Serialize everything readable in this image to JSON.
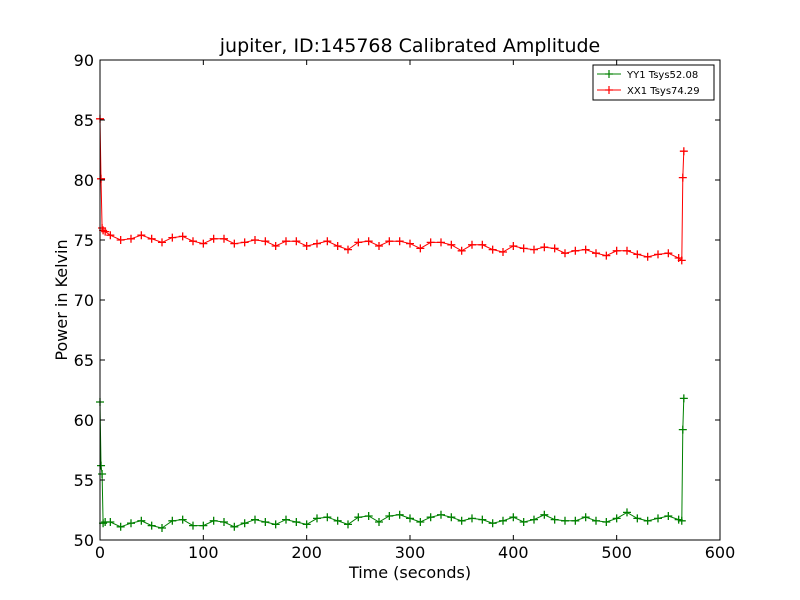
{
  "chart_data": {
    "type": "line",
    "title": "jupiter, ID:145768 Calibrated Amplitude",
    "xlabel": "Time (seconds)",
    "ylabel": "Power in Kelvin",
    "xlim": [
      0,
      600
    ],
    "ylim": [
      50,
      90
    ],
    "xticks": [
      0,
      100,
      200,
      300,
      400,
      500,
      600
    ],
    "yticks": [
      50,
      55,
      60,
      65,
      70,
      75,
      80,
      85,
      90
    ],
    "grid": false,
    "legend_position": "top-right",
    "series": [
      {
        "name": "YY1 Tsys52.08",
        "color": "#008000",
        "marker": "+",
        "x": [
          0,
          1,
          2,
          3,
          5,
          10,
          20,
          30,
          40,
          50,
          60,
          70,
          80,
          90,
          100,
          110,
          120,
          130,
          140,
          150,
          160,
          170,
          180,
          190,
          200,
          210,
          220,
          230,
          240,
          250,
          260,
          270,
          280,
          290,
          300,
          310,
          320,
          330,
          340,
          350,
          360,
          370,
          380,
          390,
          400,
          410,
          420,
          430,
          440,
          450,
          460,
          470,
          480,
          490,
          500,
          510,
          520,
          530,
          540,
          550,
          560,
          563,
          564,
          565
        ],
        "y": [
          61.5,
          56.2,
          55.5,
          51.4,
          51.5,
          51.5,
          51.1,
          51.4,
          51.6,
          51.2,
          51.0,
          51.6,
          51.7,
          51.2,
          51.2,
          51.6,
          51.5,
          51.1,
          51.4,
          51.7,
          51.5,
          51.3,
          51.7,
          51.5,
          51.3,
          51.8,
          51.9,
          51.6,
          51.3,
          51.9,
          52.0,
          51.5,
          52.0,
          52.1,
          51.8,
          51.5,
          51.9,
          52.1,
          51.9,
          51.6,
          51.8,
          51.7,
          51.4,
          51.6,
          51.9,
          51.5,
          51.7,
          52.1,
          51.7,
          51.6,
          51.6,
          51.9,
          51.6,
          51.5,
          51.8,
          52.3,
          51.8,
          51.6,
          51.8,
          52.0,
          51.7,
          51.6,
          59.2,
          61.8
        ]
      },
      {
        "name": "XX1 Tsys74.29",
        "color": "#ff0000",
        "marker": "+",
        "x": [
          0,
          1,
          2,
          3,
          5,
          10,
          20,
          30,
          40,
          50,
          60,
          70,
          80,
          90,
          100,
          110,
          120,
          130,
          140,
          150,
          160,
          170,
          180,
          190,
          200,
          210,
          220,
          230,
          240,
          250,
          260,
          270,
          280,
          290,
          300,
          310,
          320,
          330,
          340,
          350,
          360,
          370,
          380,
          390,
          400,
          410,
          420,
          430,
          440,
          450,
          460,
          470,
          480,
          490,
          500,
          510,
          520,
          530,
          540,
          550,
          560,
          563,
          564,
          565
        ],
        "y": [
          85.1,
          80.1,
          76.0,
          75.8,
          75.7,
          75.4,
          75.0,
          75.1,
          75.4,
          75.1,
          74.8,
          75.2,
          75.3,
          74.9,
          74.7,
          75.1,
          75.1,
          74.7,
          74.8,
          75.0,
          74.9,
          74.5,
          74.9,
          74.9,
          74.5,
          74.7,
          74.9,
          74.5,
          74.2,
          74.8,
          74.9,
          74.5,
          74.9,
          74.9,
          74.7,
          74.3,
          74.8,
          74.8,
          74.6,
          74.1,
          74.6,
          74.6,
          74.2,
          74.0,
          74.5,
          74.3,
          74.2,
          74.4,
          74.3,
          73.9,
          74.1,
          74.2,
          73.9,
          73.7,
          74.1,
          74.1,
          73.8,
          73.6,
          73.8,
          73.9,
          73.5,
          73.3,
          80.2,
          82.4
        ]
      }
    ]
  }
}
